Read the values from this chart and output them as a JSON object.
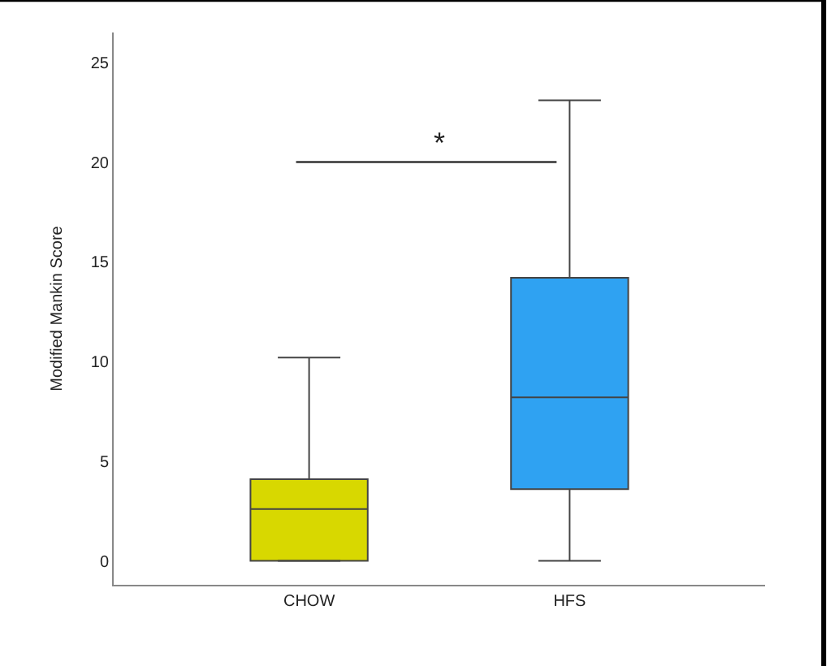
{
  "chart_data": {
    "type": "box",
    "ylabel": "Modified Mankin Score",
    "categories": [
      "CHOW",
      "HFS"
    ],
    "boxes": [
      {
        "low": 0,
        "q1": 0,
        "median": 2.6,
        "q3": 4.1,
        "high": 10.2
      },
      {
        "low": 0,
        "q1": 3.6,
        "median": 8.2,
        "q3": 14.2,
        "high": 23.1
      }
    ],
    "colors": [
      "#d8d800",
      "#2fa2f2"
    ],
    "ylim": [
      -1.2,
      26.5
    ],
    "yticks": [
      0,
      5,
      10,
      15,
      20,
      25
    ],
    "grid": false,
    "legend": false,
    "annotations": [
      "*"
    ]
  }
}
